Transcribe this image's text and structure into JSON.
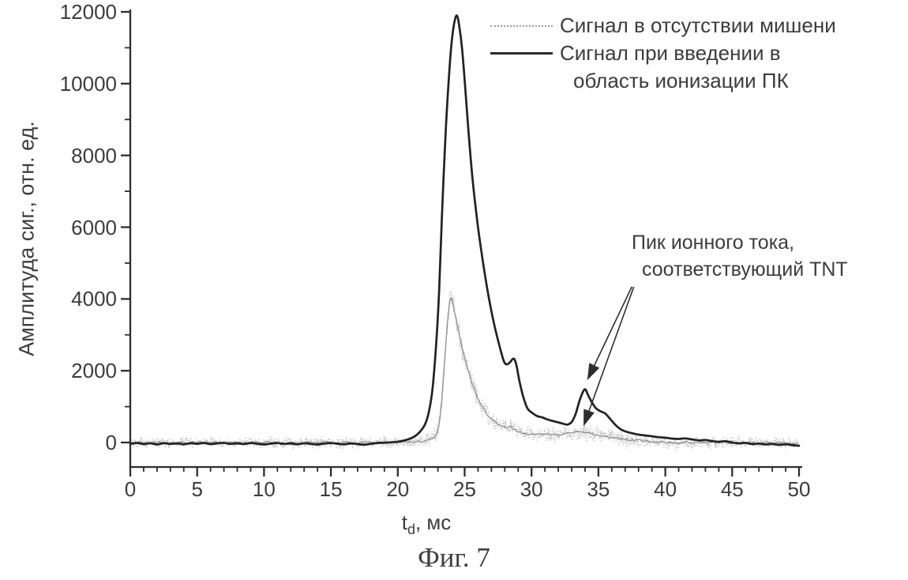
{
  "figure": {
    "caption": "Фиг. 7"
  },
  "chart_data": {
    "type": "line",
    "title": "",
    "grid": false,
    "legend_position": "top-right",
    "x_axis": {
      "label_base": "t",
      "label_sub": "d",
      "label_rest": ", мс",
      "min": 0,
      "max": 50,
      "tick_values": [
        0,
        5,
        10,
        15,
        20,
        25,
        30,
        35,
        40,
        45,
        50
      ],
      "tick_labels": [
        "0",
        "5",
        "10",
        "15",
        "20",
        "25",
        "30",
        "35",
        "40",
        "45",
        "50"
      ],
      "minor_step": 1
    },
    "y_axis": {
      "label": "Амплитуда сиг., отн. ед.",
      "min": 0,
      "max": 12000,
      "tick_values": [
        0,
        2000,
        4000,
        6000,
        8000,
        10000,
        12000
      ],
      "tick_labels": [
        "0",
        "2000",
        "4000",
        "6000",
        "8000",
        "10000",
        "12000"
      ],
      "minor_step": 1000
    },
    "legend": {
      "entries": [
        {
          "label": "Сигнал в отсутствии мишени",
          "style": "dotted",
          "color": "#9b9b9b"
        },
        {
          "label": "Сигнал при введении в область ионизации ПК",
          "label_line1": "Сигнал при введении в",
          "label_line2": "область ионизации ПК",
          "style": "solid",
          "color": "#2b2b2b"
        }
      ]
    },
    "annotation": {
      "line1": "Пик ионного тока,",
      "line2": "соответствующий TNT",
      "arrows": [
        {
          "from": [
            37.5,
            4340
          ],
          "to": [
            34.25,
            1800
          ]
        },
        {
          "from": [
            37.65,
            4340
          ],
          "to": [
            33.95,
            520
          ]
        }
      ]
    },
    "series": [
      {
        "name": "Сигнал в отсутствии мишени",
        "color": "#8f8f8f",
        "style": "noisy",
        "points": [
          [
            0,
            -15
          ],
          [
            0.7,
            25
          ],
          [
            1.4,
            -25
          ],
          [
            2.1,
            15
          ],
          [
            2.8,
            -20
          ],
          [
            3.5,
            10
          ],
          [
            4.2,
            -25
          ],
          [
            4.9,
            20
          ],
          [
            5.6,
            -10
          ],
          [
            6.3,
            10
          ],
          [
            7,
            -30
          ],
          [
            7.7,
            15
          ],
          [
            8.4,
            -20
          ],
          [
            9.1,
            25
          ],
          [
            9.8,
            -15
          ],
          [
            10.5,
            20
          ],
          [
            11.2,
            -25
          ],
          [
            11.9,
            5
          ],
          [
            12.6,
            -20
          ],
          [
            13.3,
            15
          ],
          [
            14,
            -15
          ],
          [
            14.7,
            20
          ],
          [
            15.4,
            -25
          ],
          [
            16.1,
            5
          ],
          [
            16.8,
            -20
          ],
          [
            17.5,
            15
          ],
          [
            18.2,
            -10
          ],
          [
            18.9,
            15
          ],
          [
            19.6,
            -15
          ],
          [
            20.3,
            10
          ],
          [
            21,
            5
          ],
          [
            21.7,
            25
          ],
          [
            22.3,
            60
          ],
          [
            22.7,
            140
          ],
          [
            23,
            300
          ],
          [
            23.2,
            800
          ],
          [
            23.4,
            1700
          ],
          [
            23.6,
            2800
          ],
          [
            23.8,
            3700
          ],
          [
            23.95,
            4070
          ],
          [
            24.1,
            3900
          ],
          [
            24.3,
            3550
          ],
          [
            24.6,
            3000
          ],
          [
            24.9,
            2500
          ],
          [
            25.2,
            2100
          ],
          [
            25.5,
            1700
          ],
          [
            25.9,
            1300
          ],
          [
            26.3,
            1000
          ],
          [
            26.7,
            780
          ],
          [
            27.1,
            620
          ],
          [
            27.5,
            520
          ],
          [
            27.9,
            450
          ],
          [
            28.2,
            430
          ],
          [
            28.45,
            460
          ],
          [
            28.7,
            360
          ],
          [
            29,
            300
          ],
          [
            29.4,
            260
          ],
          [
            29.8,
            240
          ],
          [
            30.3,
            230
          ],
          [
            30.8,
            215
          ],
          [
            31.3,
            225
          ],
          [
            31.8,
            210
          ],
          [
            32.3,
            230
          ],
          [
            32.8,
            260
          ],
          [
            33.2,
            300
          ],
          [
            33.55,
            330
          ],
          [
            33.9,
            290
          ],
          [
            34.3,
            255
          ],
          [
            34.7,
            225
          ],
          [
            35.1,
            200
          ],
          [
            35.5,
            175
          ],
          [
            36,
            145
          ],
          [
            36.5,
            115
          ],
          [
            37,
            95
          ],
          [
            37.5,
            75
          ],
          [
            38,
            55
          ],
          [
            38.5,
            45
          ],
          [
            39,
            35
          ],
          [
            39.5,
            25
          ],
          [
            40,
            10
          ],
          [
            40.5,
            0
          ],
          [
            41,
            -15
          ],
          [
            41.5,
            5
          ],
          [
            42,
            -25
          ],
          [
            42.5,
            -10
          ],
          [
            43,
            5
          ],
          [
            43.5,
            15
          ],
          [
            44,
            -10
          ],
          [
            44.5,
            5
          ],
          [
            45,
            -20
          ],
          [
            45.5,
            10
          ],
          [
            46,
            -15
          ],
          [
            46.5,
            0
          ],
          [
            47,
            -25
          ],
          [
            47.5,
            -5
          ],
          [
            48,
            -20
          ],
          [
            48.5,
            5
          ],
          [
            49,
            -15
          ],
          [
            49.5,
            -25
          ],
          [
            50,
            -15
          ]
        ]
      },
      {
        "name": "Сигнал при введении в область ионизации ПК",
        "color": "#222222",
        "style": "solid",
        "points": [
          [
            0,
            -40
          ],
          [
            0.5,
            -15
          ],
          [
            1,
            -45
          ],
          [
            1.5,
            -20
          ],
          [
            2,
            -55
          ],
          [
            2.5,
            -20
          ],
          [
            3,
            -40
          ],
          [
            3.5,
            -25
          ],
          [
            4,
            -50
          ],
          [
            4.5,
            -20
          ],
          [
            5,
            -35
          ],
          [
            5.5,
            -15
          ],
          [
            6,
            -45
          ],
          [
            6.5,
            -25
          ],
          [
            7,
            -10
          ],
          [
            7.5,
            -40
          ],
          [
            8,
            -25
          ],
          [
            8.5,
            -45
          ],
          [
            9,
            -15
          ],
          [
            9.5,
            -35
          ],
          [
            10,
            -55
          ],
          [
            10.5,
            -30
          ],
          [
            11,
            -15
          ],
          [
            11.5,
            -40
          ],
          [
            12,
            -25
          ],
          [
            12.5,
            -50
          ],
          [
            13,
            -20
          ],
          [
            13.5,
            -40
          ],
          [
            14,
            -55
          ],
          [
            14.5,
            -30
          ],
          [
            15,
            -15
          ],
          [
            15.5,
            -35
          ],
          [
            16,
            -50
          ],
          [
            16.5,
            -25
          ],
          [
            17,
            -45
          ],
          [
            17.5,
            -60
          ],
          [
            18,
            -35
          ],
          [
            18.5,
            -15
          ],
          [
            19,
            -5
          ],
          [
            19.5,
            5
          ],
          [
            20,
            25
          ],
          [
            20.5,
            60
          ],
          [
            21,
            120
          ],
          [
            21.5,
            240
          ],
          [
            22,
            480
          ],
          [
            22.3,
            820
          ],
          [
            22.6,
            1500
          ],
          [
            22.9,
            2900
          ],
          [
            23.1,
            4300
          ],
          [
            23.3,
            6300
          ],
          [
            23.6,
            8800
          ],
          [
            23.9,
            10600
          ],
          [
            24.1,
            11400
          ],
          [
            24.3,
            11820
          ],
          [
            24.45,
            11880
          ],
          [
            24.6,
            11600
          ],
          [
            24.8,
            11000
          ],
          [
            25,
            10100
          ],
          [
            25.3,
            8600
          ],
          [
            25.6,
            7300
          ],
          [
            26,
            6000
          ],
          [
            26.4,
            4950
          ],
          [
            26.8,
            4050
          ],
          [
            27.2,
            3300
          ],
          [
            27.6,
            2700
          ],
          [
            27.9,
            2300
          ],
          [
            28.1,
            2180
          ],
          [
            28.35,
            2220
          ],
          [
            28.6,
            2330
          ],
          [
            28.75,
            2300
          ],
          [
            28.9,
            2100
          ],
          [
            29.1,
            1700
          ],
          [
            29.4,
            1250
          ],
          [
            29.7,
            950
          ],
          [
            30,
            840
          ],
          [
            30.4,
            740
          ],
          [
            30.8,
            700
          ],
          [
            31.2,
            640
          ],
          [
            31.6,
            600
          ],
          [
            32,
            560
          ],
          [
            32.4,
            520
          ],
          [
            32.7,
            500
          ],
          [
            33,
            570
          ],
          [
            33.3,
            800
          ],
          [
            33.6,
            1180
          ],
          [
            33.9,
            1450
          ],
          [
            34.05,
            1470
          ],
          [
            34.2,
            1340
          ],
          [
            34.5,
            1130
          ],
          [
            34.8,
            960
          ],
          [
            35.1,
            880
          ],
          [
            35.5,
            810
          ],
          [
            35.9,
            650
          ],
          [
            36.3,
            480
          ],
          [
            36.7,
            360
          ],
          [
            37.1,
            300
          ],
          [
            37.5,
            260
          ],
          [
            38,
            220
          ],
          [
            38.5,
            195
          ],
          [
            39,
            175
          ],
          [
            39.5,
            150
          ],
          [
            40,
            135
          ],
          [
            40.5,
            110
          ],
          [
            41,
            100
          ],
          [
            41.5,
            115
          ],
          [
            42,
            85
          ],
          [
            42.5,
            60
          ],
          [
            43,
            70
          ],
          [
            43.5,
            40
          ],
          [
            44,
            20
          ],
          [
            44.5,
            35
          ],
          [
            45,
            0
          ],
          [
            45.5,
            -25
          ],
          [
            46,
            -10
          ],
          [
            46.5,
            -45
          ],
          [
            47,
            -30
          ],
          [
            47.5,
            -55
          ],
          [
            48,
            -40
          ],
          [
            48.5,
            -65
          ],
          [
            49,
            -50
          ],
          [
            49.5,
            -75
          ],
          [
            50,
            -90
          ]
        ]
      }
    ],
    "noise": {
      "seeds": [
        101,
        202,
        303
      ],
      "envelope": [
        [
          0,
          200
        ],
        [
          10,
          210
        ],
        [
          15,
          220
        ],
        [
          20,
          210
        ],
        [
          22,
          240
        ],
        [
          23,
          380
        ],
        [
          24,
          480
        ],
        [
          25,
          430
        ],
        [
          26,
          380
        ],
        [
          27,
          330
        ],
        [
          28,
          300
        ],
        [
          29,
          270
        ],
        [
          30,
          250
        ],
        [
          31,
          260
        ],
        [
          32,
          290
        ],
        [
          33,
          320
        ],
        [
          34,
          360
        ],
        [
          35,
          330
        ],
        [
          36,
          310
        ],
        [
          37,
          290
        ],
        [
          38,
          310
        ],
        [
          39,
          260
        ],
        [
          40,
          240
        ],
        [
          42,
          250
        ],
        [
          44,
          230
        ],
        [
          46,
          220
        ],
        [
          48,
          220
        ],
        [
          50,
          200
        ]
      ]
    }
  }
}
